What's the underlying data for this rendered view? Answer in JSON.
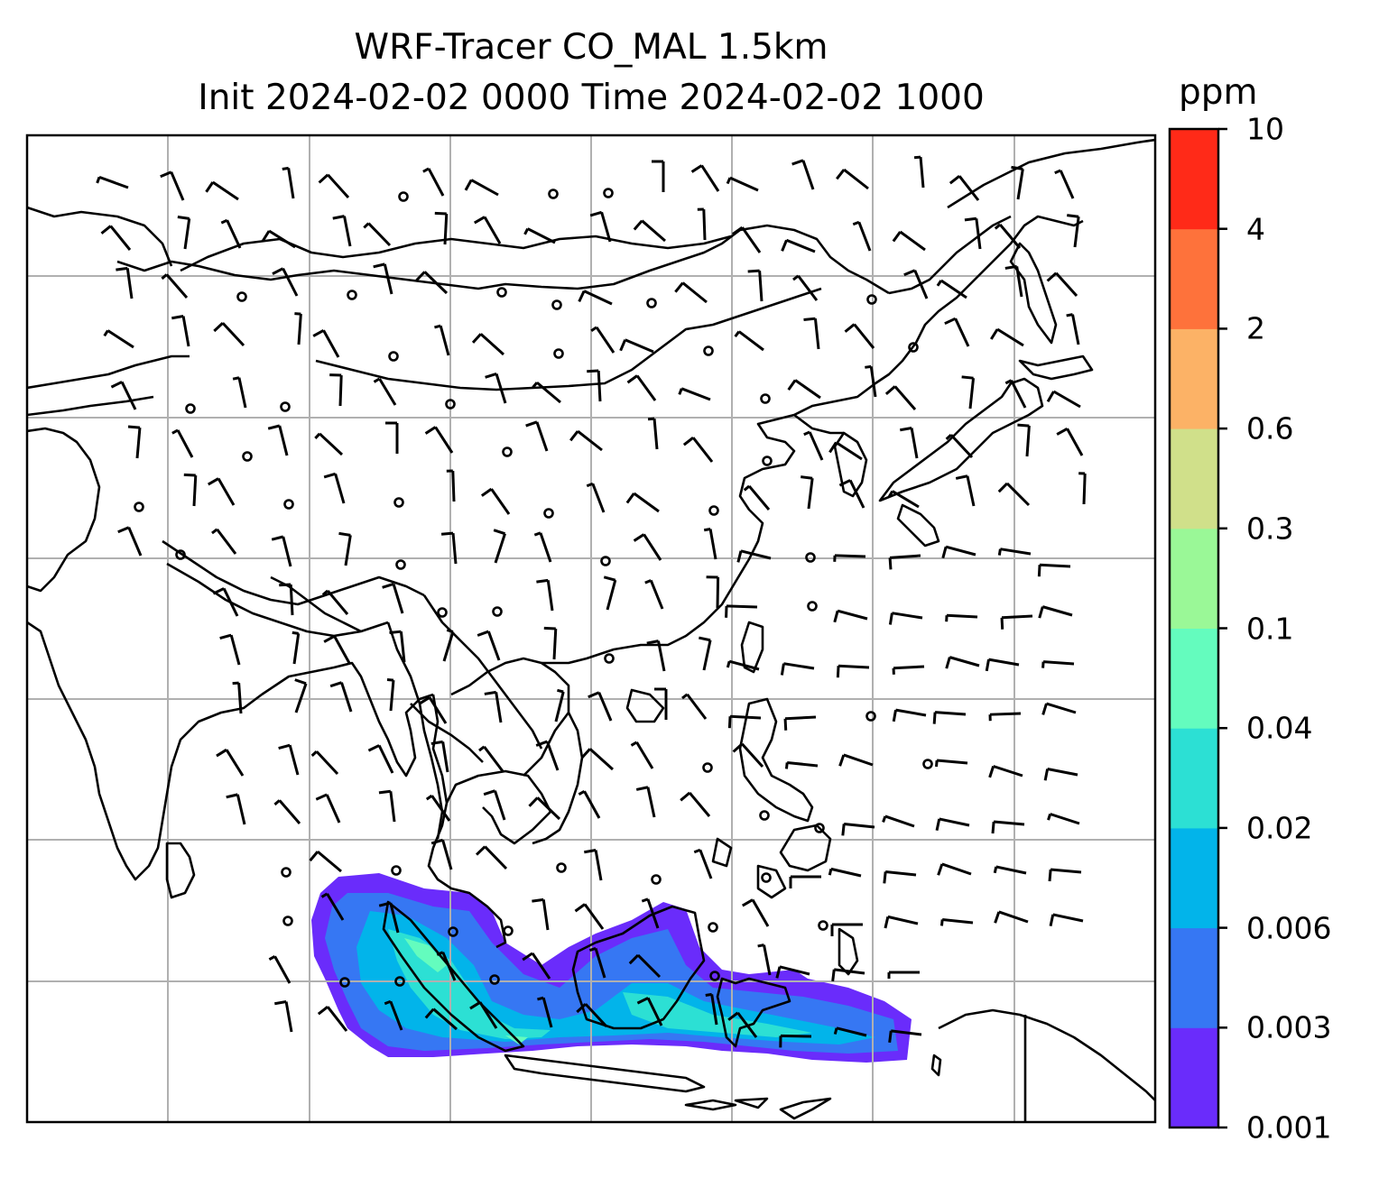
{
  "figure": {
    "title_line1": "WRF-Tracer CO_MAL 1.5km",
    "title_line2": "Init 2024-02-02 0000 Time 2024-02-02 1000"
  },
  "colorbar": {
    "unit": "ppm",
    "ticks": [
      "10",
      "4",
      "2",
      "0.6",
      "0.3",
      "0.1",
      "0.04",
      "0.02",
      "0.006",
      "0.003",
      "0.001"
    ],
    "colors": [
      "#6a2cfb",
      "#3677f3",
      "#02b4ea",
      "#2ce0d4",
      "#64fcbe",
      "#9af897",
      "#d0e08a",
      "#fcb266",
      "#fe723b",
      "#ff2a18"
    ]
  },
  "map": {
    "gridline_color": "#b0b0b0",
    "coastline_color": "#000000",
    "barb_color": "#000000",
    "calm_marker": "circle"
  }
}
